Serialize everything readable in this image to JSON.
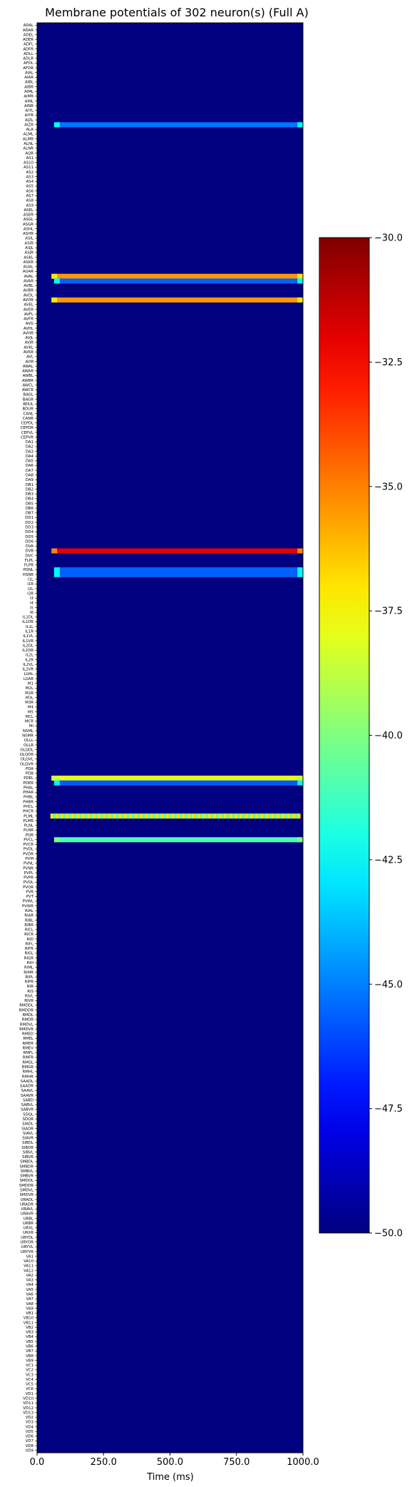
{
  "chart_data": {
    "type": "heatmap",
    "title": "Membrane potentials of 302 neuron(s) (Full A)",
    "xlabel": "Time (ms)",
    "ylabel": "",
    "xlim": [
      0,
      1000
    ],
    "x_ticks": [
      0,
      250,
      500,
      750,
      1000
    ],
    "x_tick_labels": [
      "0.0",
      "250.0",
      "500.0",
      "750.0",
      "1000.0"
    ],
    "colormap": "jet",
    "color_range": [
      -50,
      -30
    ],
    "colorbar_ticks": [
      -30,
      -32.5,
      -35,
      -37.5,
      -40,
      -42.5,
      -45,
      -47.5,
      -50
    ],
    "colorbar_tick_labels": [
      "−30.0",
      "−32.5",
      "−35.0",
      "−37.5",
      "−40.0",
      "−42.5",
      "−45.0",
      "−47.5",
      "−50.0"
    ],
    "baseline_value": -50,
    "neuron_count": 302,
    "rows": [
      {
        "neuron": "AIZR",
        "start_ms": 80,
        "end_ms": 990,
        "value": -45.2
      },
      {
        "neuron": "AVAL",
        "start_ms": 70,
        "end_ms": 990,
        "value": -35.5
      },
      {
        "neuron": "AVAR",
        "start_ms": 80,
        "end_ms": 990,
        "value": -45.6
      },
      {
        "neuron": "AVDR",
        "start_ms": 70,
        "end_ms": 990,
        "value": -35.5
      },
      {
        "neuron": "DVB",
        "start_ms": 70,
        "end_ms": 990,
        "value": -32.0
      },
      {
        "neuron": "HSNL",
        "start_ms": 80,
        "end_ms": 990,
        "value": -45.6
      },
      {
        "neuron": "HSNR",
        "start_ms": 80,
        "end_ms": 990,
        "value": -45.6
      },
      {
        "neuron": "PDEL",
        "start_ms": 70,
        "end_ms": 990,
        "value": -38.0
      },
      {
        "neuron": "PDER",
        "start_ms": 80,
        "end_ms": 990,
        "value": -45.8
      },
      {
        "neuron": "PLML",
        "start_ms": 50,
        "end_ms": 990,
        "value": -37.0,
        "oscillating": true
      },
      {
        "neuron": "PVCL",
        "start_ms": 80,
        "end_ms": 990,
        "value": -41.0
      }
    ],
    "y_tick_labels": [
      "ADAL",
      "ADAR",
      "ADEL",
      "ADER",
      "ADFL",
      "ADFR",
      "ADLL",
      "ADLR",
      "AFDL",
      "AFDR",
      "AIAL",
      "AIAR",
      "AIBL",
      "AIBR",
      "AIML",
      "AIMR",
      "AINL",
      "AINR",
      "AIYL",
      "AIYR",
      "AIZL",
      "AIZR",
      "ALA",
      "ALML",
      "ALMR",
      "ALNL",
      "ALNR",
      "AQR",
      "AS1",
      "AS10",
      "AS11",
      "AS2",
      "AS3",
      "AS4",
      "AS5",
      "AS6",
      "AS7",
      "AS8",
      "AS9",
      "ASEL",
      "ASER",
      "ASGL",
      "ASGR",
      "ASHL",
      "ASHR",
      "ASIL",
      "ASIR",
      "ASJL",
      "ASJR",
      "ASKL",
      "ASKR",
      "AUAL",
      "AUAR",
      "AVAL",
      "AVAR",
      "AVBL",
      "AVBR",
      "AVDL",
      "AVDR",
      "AVEL",
      "AVER",
      "AVFL",
      "AVFR",
      "AVG",
      "AVHL",
      "AVHR",
      "AVJL",
      "AVJR",
      "AVKL",
      "AVKR",
      "AVL",
      "AVM",
      "AWAL",
      "AWAR",
      "AWBL",
      "AWBR",
      "AWCL",
      "AWCR",
      "BAGL",
      "BAGR",
      "BDUL",
      "BDUR",
      "CANL",
      "CANR",
      "CEPDL",
      "CEPDR",
      "CEPVL",
      "CEPVR",
      "DA1",
      "DA2",
      "DA3",
      "DA4",
      "DA5",
      "DA6",
      "DA7",
      "DA8",
      "DA9",
      "DB1",
      "DB2",
      "DB3",
      "DB4",
      "DB5",
      "DB6",
      "DB7",
      "DD1",
      "DD2",
      "DD3",
      "DD4",
      "DD5",
      "DD6",
      "DVA",
      "DVB",
      "DVC",
      "FLPL",
      "FLPR",
      "HSNL",
      "HSNR",
      "I1L",
      "I1R",
      "I2L",
      "I2R",
      "I3",
      "I4",
      "I5",
      "I6",
      "IL1DL",
      "IL1DR",
      "IL1L",
      "IL1R",
      "IL1VL",
      "IL1VR",
      "IL2DL",
      "IL2DR",
      "IL2L",
      "IL2R",
      "IL2VL",
      "IL2VR",
      "LUAL",
      "LUAR",
      "M1",
      "M2L",
      "M2R",
      "M3L",
      "M3R",
      "M4",
      "M5",
      "MCL",
      "MCR",
      "MI",
      "NSML",
      "NSMR",
      "OLLL",
      "OLLR",
      "OLQDL",
      "OLQDR",
      "OLQVL",
      "OLQVR",
      "PDA",
      "PDB",
      "PDEL",
      "PDER",
      "PHAL",
      "PHAR",
      "PHBL",
      "PHBR",
      "PHCL",
      "PHCR",
      "PLML",
      "PLMR",
      "PLNL",
      "PLNR",
      "PQR",
      "PVCL",
      "PVCR",
      "PVDL",
      "PVDR",
      "PVM",
      "PVNL",
      "PVNR",
      "PVPL",
      "PVPR",
      "PVQL",
      "PVQR",
      "PVR",
      "PVT",
      "PVWL",
      "PVWR",
      "RIAL",
      "RIAR",
      "RIBL",
      "RIBR",
      "RICL",
      "RICR",
      "RID",
      "RIFL",
      "RIFR",
      "RIGL",
      "RIGR",
      "RIH",
      "RIML",
      "RIMR",
      "RIPL",
      "RIPR",
      "RIR",
      "RIS",
      "RIVL",
      "RIVR",
      "RMDDL",
      "RMDDR",
      "RMDL",
      "RMDR",
      "RMDVL",
      "RMDVR",
      "RMED",
      "RMEL",
      "RMER",
      "RMEV",
      "RMFL",
      "RMFR",
      "RMGL",
      "RMGR",
      "RMHL",
      "RMHR",
      "SAADL",
      "SAADR",
      "SAAVL",
      "SAAVR",
      "SABD",
      "SABVL",
      "SABVR",
      "SDQL",
      "SDQR",
      "SIADL",
      "SIADR",
      "SIAVL",
      "SIAVR",
      "SIBDL",
      "SIBDR",
      "SIBVL",
      "SIBVR",
      "SMBDL",
      "SMBDR",
      "SMBVL",
      "SMBVR",
      "SMDDL",
      "SMDDR",
      "SMDVL",
      "SMDVR",
      "URADL",
      "URADR",
      "URAVL",
      "URAVR",
      "URBL",
      "URBR",
      "URXL",
      "URXR",
      "URYDL",
      "URYDR",
      "URYVL",
      "URYVR",
      "VA1",
      "VA10",
      "VA11",
      "VA12",
      "VA2",
      "VA3",
      "VA4",
      "VA5",
      "VA6",
      "VA7",
      "VA8",
      "VA9",
      "VB1",
      "VB10",
      "VB11",
      "VB2",
      "VB3",
      "VB4",
      "VB5",
      "VB6",
      "VB7",
      "VB8",
      "VB9",
      "VC1",
      "VC2",
      "VC3",
      "VC4",
      "VC5",
      "VC6",
      "VD1",
      "VD10",
      "VD11",
      "VD12",
      "VD13",
      "VD2",
      "VD3",
      "VD4",
      "VD5",
      "VD6",
      "VD7",
      "VD8",
      "VD9"
    ]
  }
}
